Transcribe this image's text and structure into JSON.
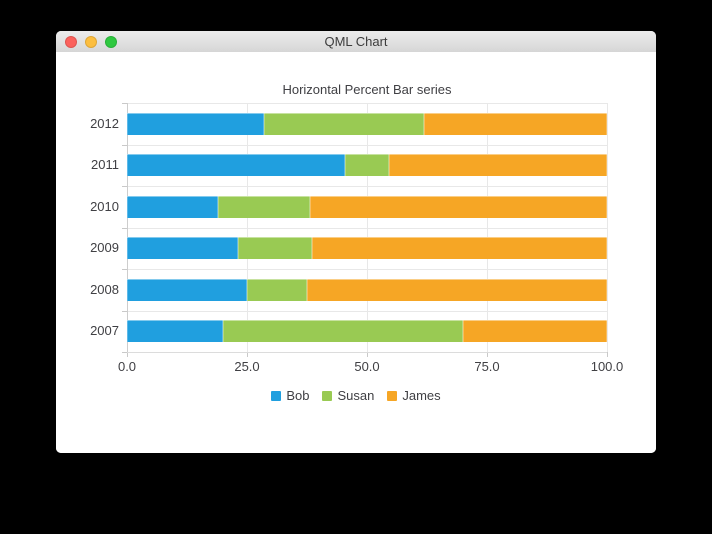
{
  "window": {
    "title": "QML Chart",
    "controls": {
      "close_color": "#fb615c",
      "minimize_color": "#fcbe3f",
      "zoom_color": "#2fc840"
    }
  },
  "chart_data": {
    "type": "bar",
    "orientation": "horizontal",
    "stacking": "percent",
    "title": "Horizontal Percent Bar series",
    "categories": [
      "2012",
      "2011",
      "2010",
      "2009",
      "2008",
      "2007"
    ],
    "series": [
      {
        "name": "Bob",
        "color": "#209fdf",
        "values": [
          28.6,
          45.5,
          19.0,
          23.1,
          25.0,
          20.0
        ]
      },
      {
        "name": "Susan",
        "color": "#99ca53",
        "values": [
          33.3,
          9.1,
          19.0,
          15.4,
          12.5,
          50.0
        ]
      },
      {
        "name": "James",
        "color": "#f6a625",
        "values": [
          38.1,
          45.5,
          61.9,
          61.5,
          62.5,
          30.0
        ]
      }
    ],
    "x_ticks": [
      "0.0",
      "25.0",
      "50.0",
      "75.0",
      "100.0"
    ],
    "xlim": [
      0,
      100
    ],
    "grid": true,
    "legend_position": "bottom"
  }
}
